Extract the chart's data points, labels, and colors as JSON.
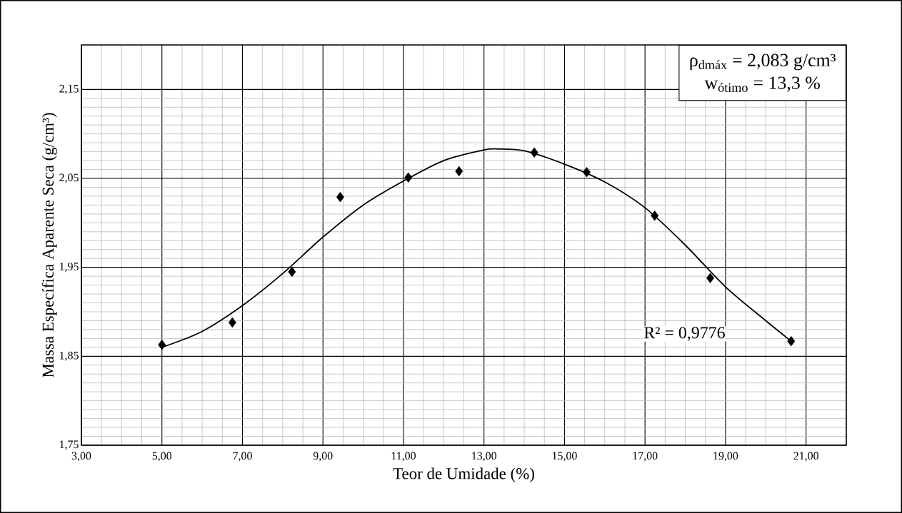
{
  "chart_data": {
    "type": "scatter",
    "xlabel": "Teor de Umidade (%)",
    "ylabel": "Massa Específica Aparente Seca (g/cm³)",
    "xlim": [
      3,
      22
    ],
    "ylim": [
      1.75,
      2.2
    ],
    "xticks": [
      {
        "value": 3,
        "label": "3,00"
      },
      {
        "value": 5,
        "label": "5,00"
      },
      {
        "value": 7,
        "label": "7,00"
      },
      {
        "value": 9,
        "label": "9,00"
      },
      {
        "value": 11,
        "label": "11,00"
      },
      {
        "value": 13,
        "label": "13,00"
      },
      {
        "value": 15,
        "label": "15,00"
      },
      {
        "value": 17,
        "label": "17,00"
      },
      {
        "value": 19,
        "label": "19,00"
      },
      {
        "value": 21,
        "label": "21,00"
      }
    ],
    "yticks": [
      {
        "value": 1.75,
        "label": "1,75"
      },
      {
        "value": 1.85,
        "label": "1,85"
      },
      {
        "value": 1.95,
        "label": "1,95"
      },
      {
        "value": 2.05,
        "label": "2,05"
      },
      {
        "value": 2.15,
        "label": "2,15"
      }
    ],
    "grid": true,
    "series": [
      {
        "marker": "diamond",
        "color": "#000000",
        "x": [
          5.0,
          6.75,
          8.23,
          9.43,
          11.12,
          12.38,
          14.25,
          15.55,
          17.24,
          18.62,
          20.63
        ],
        "values": [
          1.863,
          1.888,
          1.945,
          2.029,
          2.051,
          2.058,
          2.079,
          2.057,
          2.008,
          1.938,
          1.867
        ]
      },
      {
        "type": "line",
        "color": "#000000",
        "x": [
          5.0,
          6.0,
          7.0,
          8.0,
          9.0,
          10.0,
          11.0,
          12.0,
          13.0,
          13.35,
          14.0,
          15.0,
          16.0,
          17.0,
          18.0,
          19.0,
          20.0,
          20.63
        ],
        "values": [
          1.86,
          1.878,
          1.907,
          1.943,
          1.984,
          2.02,
          2.047,
          2.07,
          2.082,
          2.083,
          2.081,
          2.066,
          2.046,
          2.017,
          1.975,
          1.928,
          1.89,
          1.867
        ]
      }
    ],
    "annotations": [
      "ρ$_{dmáx}$ = 2,083  g/cm³",
      "w$_{ótimo}$ = 13,3 %",
      "R² = 0,9776"
    ]
  }
}
